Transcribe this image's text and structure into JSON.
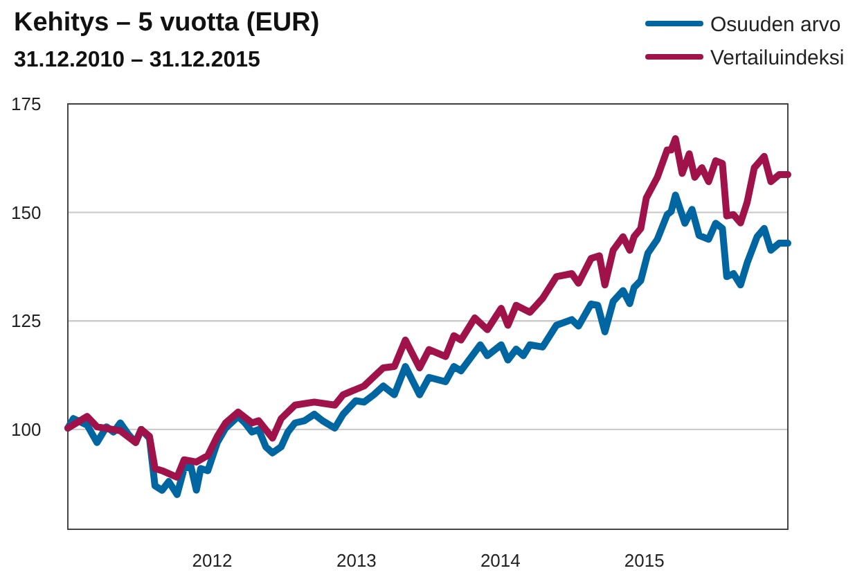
{
  "chart_data": {
    "type": "line",
    "title": "Kehitys – 5 vuotta (EUR)",
    "subtitle": "31.12.2010 – 31.12.2015",
    "xlim": [
      "2010-12-31",
      "2015-12-31"
    ],
    "ylim": [
      77,
      175
    ],
    "xticks": [
      {
        "value": "2012-01-01",
        "label": "2012"
      },
      {
        "value": "2013-01-01",
        "label": "2013"
      },
      {
        "value": "2014-01-01",
        "label": "2014"
      },
      {
        "value": "2015-01-01",
        "label": "2015"
      }
    ],
    "yticks": [
      100,
      125,
      150,
      175
    ],
    "grid": "y",
    "legend": "top right",
    "series": [
      {
        "name": "Osuuden arvo",
        "color": "#0066a1",
        "x": [
          "2010-12-31",
          "2011-01-14",
          "2011-02-18",
          "2011-03-15",
          "2011-04-08",
          "2011-04-26",
          "2011-05-13",
          "2011-06-03",
          "2011-06-21",
          "2011-07-05",
          "2011-07-26",
          "2011-08-09",
          "2011-08-27",
          "2011-09-13",
          "2011-10-04",
          "2011-10-22",
          "2011-11-08",
          "2011-11-22",
          "2011-12-03",
          "2011-12-21",
          "2012-01-14",
          "2012-02-04",
          "2012-03-07",
          "2012-03-24",
          "2012-04-11",
          "2012-04-28",
          "2012-05-16",
          "2012-06-02",
          "2012-06-24",
          "2012-07-11",
          "2012-07-29",
          "2012-08-22",
          "2012-09-16",
          "2012-10-07",
          "2012-11-07",
          "2012-11-28",
          "2012-12-30",
          "2013-01-20",
          "2013-02-14",
          "2013-03-10",
          "2013-04-07",
          "2013-05-05",
          "2013-06-10",
          "2013-07-04",
          "2013-08-15",
          "2013-09-05",
          "2013-09-23",
          "2013-11-11",
          "2013-11-29",
          "2014-01-03",
          "2014-01-20",
          "2014-02-10",
          "2014-02-28",
          "2014-03-17",
          "2014-04-18",
          "2014-05-23",
          "2014-07-01",
          "2014-07-18",
          "2014-08-19",
          "2014-09-05",
          "2014-09-23",
          "2014-10-14",
          "2014-11-08",
          "2014-11-25",
          "2014-12-06",
          "2014-12-23",
          "2015-01-10",
          "2015-02-03",
          "2015-02-28",
          "2015-03-10",
          "2015-03-21",
          "2015-04-14",
          "2015-05-02",
          "2015-05-20",
          "2015-06-13",
          "2015-07-01",
          "2015-07-18",
          "2015-07-29",
          "2015-08-15",
          "2015-09-02",
          "2015-09-19",
          "2015-10-14",
          "2015-11-01",
          "2015-11-18",
          "2015-12-09",
          "2015-12-31"
        ],
        "values": [
          100.3,
          102.5,
          101,
          97,
          100.6,
          99.4,
          101.5,
          98.8,
          97,
          100,
          98,
          87,
          86,
          88,
          85,
          91,
          91.5,
          86,
          91,
          90.5,
          97,
          100.3,
          103,
          101.5,
          99.4,
          100,
          96,
          94.6,
          96,
          99.4,
          101.5,
          102,
          103.5,
          102,
          100.3,
          103.5,
          106.6,
          106.3,
          108,
          110,
          108,
          114.5,
          108,
          112,
          111,
          114.5,
          113.5,
          119.5,
          117,
          119.5,
          116,
          118.5,
          117,
          119.5,
          119,
          124,
          125.3,
          123.8,
          128.9,
          128.6,
          122.5,
          129.5,
          132,
          129,
          132.7,
          134.3,
          140.6,
          143.8,
          149.5,
          150.2,
          154,
          147.5,
          150.7,
          144.7,
          143.8,
          147.5,
          146.3,
          135.2,
          135.9,
          133.3,
          138.4,
          144.4,
          146.3,
          141.3,
          142.9,
          142.9
        ]
      },
      {
        "name": "Vertailuindeksi",
        "color": "#a0134a",
        "x": [
          "2010-12-31",
          "2011-02-18",
          "2011-03-15",
          "2011-05-13",
          "2011-06-21",
          "2011-07-05",
          "2011-07-26",
          "2011-08-09",
          "2011-08-27",
          "2011-10-04",
          "2011-10-22",
          "2011-11-22",
          "2011-12-21",
          "2012-01-14",
          "2012-02-04",
          "2012-03-07",
          "2012-04-11",
          "2012-04-28",
          "2012-06-02",
          "2012-06-24",
          "2012-07-29",
          "2012-09-16",
          "2012-11-07",
          "2012-11-28",
          "2013-01-20",
          "2013-03-10",
          "2013-04-07",
          "2013-05-05",
          "2013-06-10",
          "2013-07-04",
          "2013-08-15",
          "2013-09-05",
          "2013-09-23",
          "2013-10-28",
          "2013-11-29",
          "2014-01-03",
          "2014-01-20",
          "2014-02-10",
          "2014-03-17",
          "2014-04-18",
          "2014-05-23",
          "2014-07-01",
          "2014-07-18",
          "2014-08-19",
          "2014-09-09",
          "2014-09-23",
          "2014-10-14",
          "2014-11-08",
          "2014-11-25",
          "2014-12-06",
          "2014-12-23",
          "2015-01-06",
          "2015-02-03",
          "2015-02-28",
          "2015-03-10",
          "2015-03-21",
          "2015-04-07",
          "2015-04-25",
          "2015-05-09",
          "2015-05-27",
          "2015-06-13",
          "2015-07-01",
          "2015-07-18",
          "2015-07-29",
          "2015-08-15",
          "2015-09-02",
          "2015-09-19",
          "2015-10-07",
          "2015-11-01",
          "2015-11-18",
          "2015-12-09",
          "2015-12-31"
        ],
        "values": [
          100.3,
          103,
          100.6,
          99.7,
          97,
          100,
          98.4,
          91,
          90.5,
          89,
          93,
          92.5,
          94,
          98.4,
          101.5,
          104,
          101.5,
          102,
          98,
          102.5,
          105.6,
          106.3,
          105.6,
          108,
          110,
          114.2,
          114.5,
          120.6,
          114.2,
          118.4,
          116.8,
          121.6,
          120.6,
          125.7,
          123,
          127.9,
          124,
          128.6,
          127,
          130.2,
          135.2,
          135.9,
          133.7,
          139.4,
          140,
          133.3,
          141.3,
          144.4,
          141.3,
          144.4,
          146.3,
          153.3,
          158.1,
          164.4,
          164.4,
          167,
          159,
          163.5,
          158.1,
          160.3,
          157.1,
          161.9,
          161.3,
          149.2,
          149.5,
          147.6,
          152.4,
          160.3,
          162.9,
          157.1,
          158.7,
          158.7
        ]
      }
    ]
  }
}
